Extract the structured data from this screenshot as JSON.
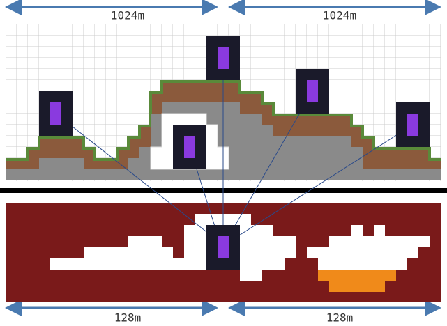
{
  "top_labels": [
    "1024m",
    "1024m"
  ],
  "bottom_labels": [
    "128m",
    "128m"
  ]
}
